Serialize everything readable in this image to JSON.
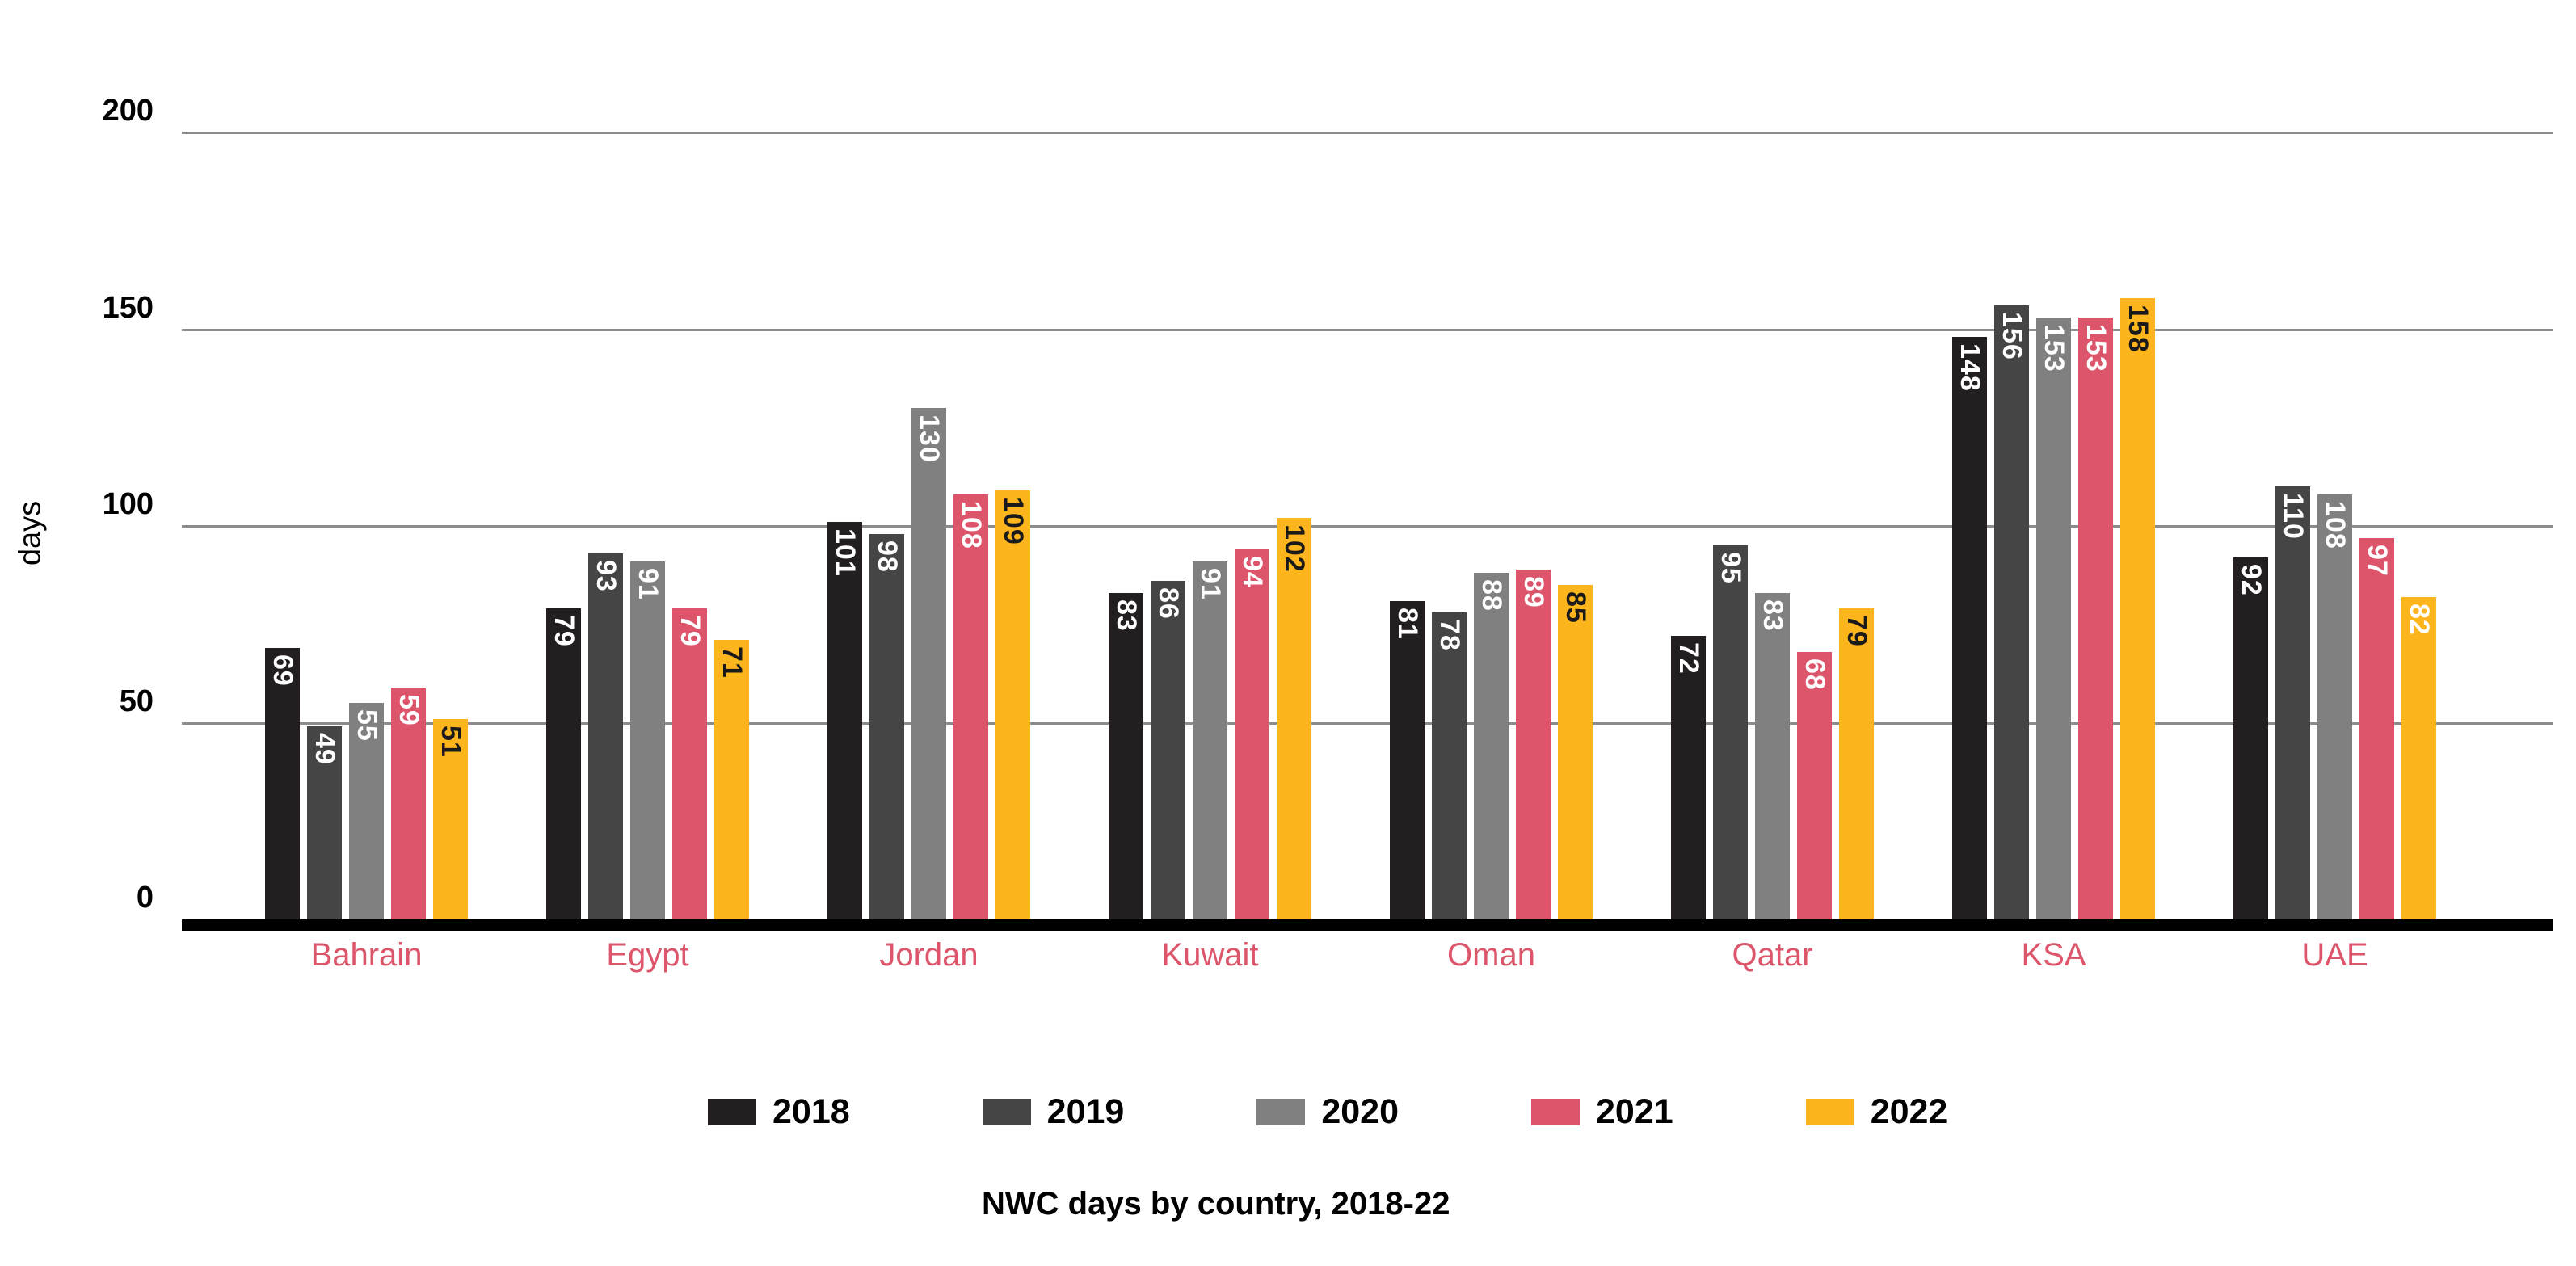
{
  "chart_data": {
    "type": "bar",
    "title": "NWC days by country, 2018-22",
    "ylabel": "days",
    "ylim": [
      0,
      200
    ],
    "yticks": [
      0,
      50,
      100,
      150,
      200
    ],
    "grid": "horizontal-gridlines",
    "legend_position": "bottom-center",
    "gridline_color": "#8C8C8C",
    "axis_color": "#000000",
    "category_label_color": "#DC556B",
    "categories": [
      "Bahrain",
      "Egypt",
      "Jordan",
      "Kuwait",
      "Oman",
      "Qatar",
      "KSA",
      "UAE"
    ],
    "series": [
      {
        "name": "2018",
        "color": "#231F20",
        "label_color": "#FFFFFF",
        "values": [
          69,
          79,
          101,
          83,
          81,
          72,
          148,
          92
        ]
      },
      {
        "name": "2019",
        "color": "#454545",
        "label_color": "#FFFFFF",
        "values": [
          49,
          93,
          98,
          86,
          78,
          95,
          156,
          110
        ]
      },
      {
        "name": "2020",
        "color": "#808080",
        "label_color": "#FFFFFF",
        "values": [
          55,
          91,
          130,
          91,
          88,
          83,
          153,
          108
        ]
      },
      {
        "name": "2021",
        "color": "#DC556B",
        "label_color": "#FFFFFF",
        "values": [
          59,
          79,
          108,
          94,
          89,
          68,
          153,
          97
        ]
      },
      {
        "name": "2022",
        "color": "#FDB51E",
        "label_color": "#1A1A1A",
        "label_color_overrides": {
          "UAE": "#FFFFFF"
        },
        "values": [
          51,
          71,
          109,
          102,
          85,
          79,
          158,
          82
        ]
      }
    ]
  }
}
